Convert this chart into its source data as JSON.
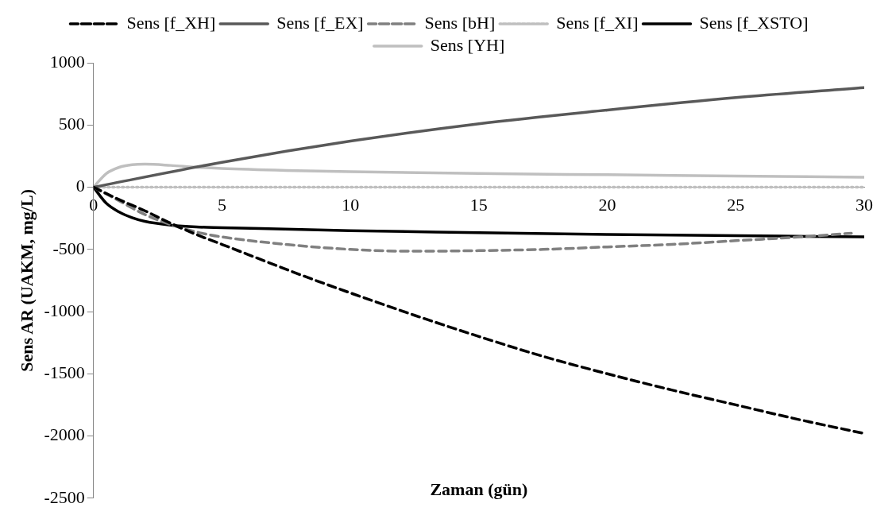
{
  "chart_data": {
    "type": "line",
    "xlabel": "Zaman (gün)",
    "ylabel": "Sens AR (UAKM, mg/L)",
    "xlim": [
      0,
      30
    ],
    "xticks": [
      0,
      5,
      10,
      15,
      20,
      25,
      30
    ],
    "ylim": [
      -2500,
      1000
    ],
    "yticks": [
      -2500,
      -2000,
      -1500,
      -1000,
      -500,
      0,
      500,
      1000
    ],
    "grid": false,
    "legend": "top",
    "marker": "none",
    "series": [
      {
        "name": "Sens [f_XH]",
        "color": "#000000",
        "line_style": "dashed",
        "x": [
          0,
          1,
          2,
          3,
          4,
          5,
          6,
          8,
          10,
          12.5,
          15,
          17.5,
          20,
          22.5,
          25,
          27.5,
          30
        ],
        "values": [
          0,
          -100,
          -190,
          -290,
          -380,
          -460,
          -540,
          -700,
          -850,
          -1030,
          -1200,
          -1360,
          -1500,
          -1630,
          -1750,
          -1870,
          -1980
        ]
      },
      {
        "name": "Sens [f_EX]",
        "color": "#595959",
        "line_style": "solid",
        "x": [
          0,
          5,
          10,
          15,
          20,
          25,
          30
        ],
        "values": [
          0,
          200,
          370,
          510,
          620,
          720,
          800
        ]
      },
      {
        "name": "Sens [bH]",
        "color": "#808080",
        "line_style": "dashed",
        "x": [
          0,
          1,
          2,
          3,
          4,
          5,
          7.5,
          10,
          12.5,
          15,
          17.5,
          20,
          22.5,
          25,
          27.5,
          29.5
        ],
        "values": [
          0,
          -110,
          -220,
          -300,
          -360,
          -400,
          -460,
          -500,
          -515,
          -510,
          -500,
          -480,
          -460,
          -430,
          -400,
          -370
        ]
      },
      {
        "name": "Sens [f_XI]",
        "color": "#bfbfbf",
        "line_style": "dotted",
        "x": [
          0,
          30
        ],
        "values": [
          0,
          0
        ]
      },
      {
        "name": "Sens [f_XSTO]",
        "color": "#000000",
        "line_style": "solid",
        "x": [
          0,
          0.5,
          1,
          1.5,
          2,
          3,
          4,
          5,
          10,
          15,
          20,
          25,
          30
        ],
        "values": [
          0,
          -130,
          -200,
          -245,
          -275,
          -305,
          -320,
          -325,
          -350,
          -365,
          -380,
          -390,
          -400
        ]
      },
      {
        "name": "Sens [YH]",
        "color": "#bfbfbf",
        "line_style": "solid",
        "x": [
          0,
          0.5,
          1,
          1.5,
          2,
          3,
          4,
          5,
          7.5,
          10,
          15,
          20,
          25,
          30
        ],
        "values": [
          0,
          110,
          160,
          180,
          185,
          175,
          160,
          150,
          135,
          125,
          110,
          100,
          90,
          80
        ]
      }
    ]
  }
}
